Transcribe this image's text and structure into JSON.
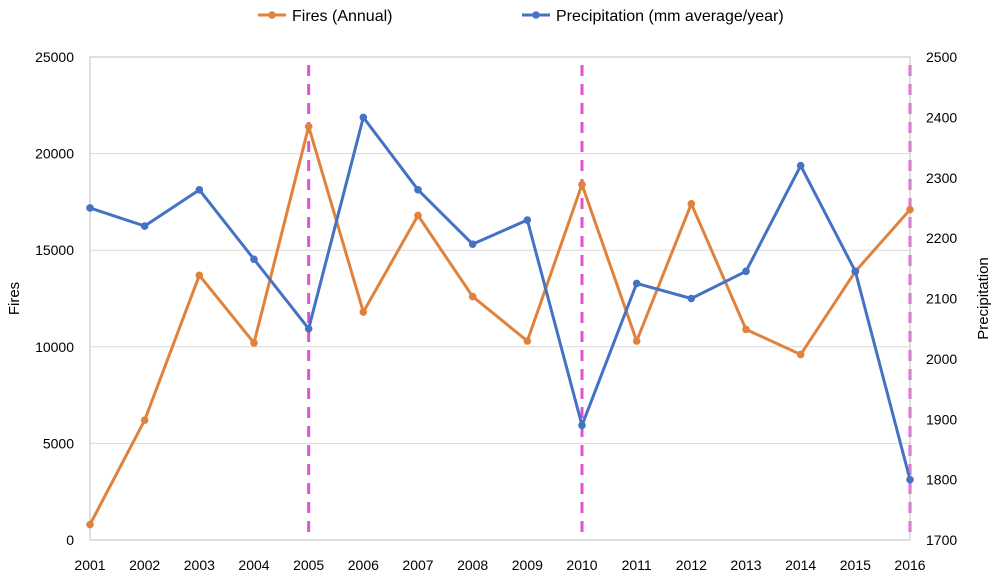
{
  "chart_data": {
    "type": "line",
    "title": "",
    "x": [
      "2001",
      "2002",
      "2003",
      "2004",
      "2005",
      "2006",
      "2007",
      "2008",
      "2009",
      "2010",
      "2011",
      "2012",
      "2013",
      "2014",
      "2015",
      "2016"
    ],
    "series": [
      {
        "name": "Fires (Annual)",
        "axis": "left",
        "color": "#E0823C",
        "values": [
          800,
          6200,
          13700,
          10200,
          21400,
          11800,
          16800,
          12600,
          10300,
          18400,
          10300,
          17400,
          10900,
          9600,
          13900,
          17100
        ]
      },
      {
        "name": "Precipitation (mm average/year)",
        "axis": "right",
        "color": "#4472C4",
        "values": [
          2250,
          2220,
          2280,
          2165,
          2050,
          2400,
          2280,
          2190,
          2230,
          1890,
          2125,
          2100,
          2145,
          2320,
          2145,
          1800
        ]
      }
    ],
    "y_left": {
      "label": "Fires",
      "min": 0,
      "max": 25000,
      "ticks": [
        0,
        5000,
        10000,
        15000,
        20000,
        25000
      ]
    },
    "y_right": {
      "label": "Precipitation",
      "min": 1700,
      "max": 2500,
      "ticks": [
        1700,
        1800,
        1900,
        2000,
        2100,
        2200,
        2300,
        2400,
        2500
      ]
    },
    "highlight_years": [
      "2005",
      "2010",
      "2016"
    ],
    "highlight_color": "#E052D0",
    "grid": true,
    "legend": "top-center"
  }
}
